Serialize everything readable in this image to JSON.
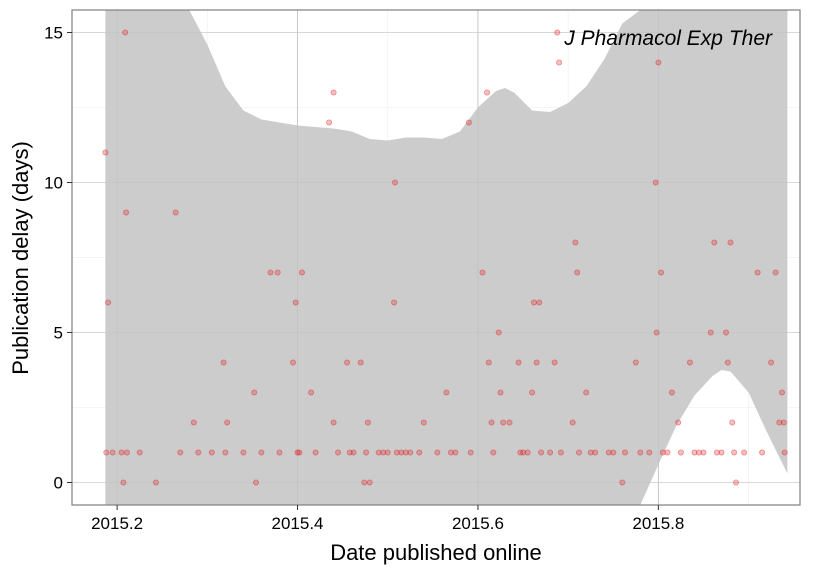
{
  "chart_data": {
    "type": "scatter",
    "title": "",
    "xlabel": "Date published online",
    "ylabel": "Publication delay (days)",
    "annotation": "J Pharmacol Exp Ther",
    "xlim": [
      2015.15,
      2015.957
    ],
    "ylim": [
      -0.75,
      15.75
    ],
    "xticks": [
      2015.2,
      2015.4,
      2015.6,
      2015.8
    ],
    "xtick_labels": [
      "2015.2",
      "2015.4",
      "2015.6",
      "2015.8"
    ],
    "yticks": [
      0,
      5,
      10,
      15
    ],
    "ytick_labels": [
      "0",
      "5",
      "10",
      "15"
    ],
    "grid": true,
    "point_color": "#e41a1c",
    "band_color": "#cccccc",
    "smooth_band": {
      "x": [
        2015.187,
        2015.2,
        2015.22,
        2015.24,
        2015.26,
        2015.28,
        2015.3,
        2015.32,
        2015.34,
        2015.36,
        2015.38,
        2015.4,
        2015.42,
        2015.44,
        2015.46,
        2015.48,
        2015.5,
        2015.52,
        2015.54,
        2015.56,
        2015.58,
        2015.6,
        2015.62,
        2015.63,
        2015.64,
        2015.66,
        2015.68,
        2015.7,
        2015.72,
        2015.74,
        2015.76,
        2015.78,
        2015.8,
        2015.82,
        2015.84,
        2015.86,
        2015.87,
        2015.88,
        2015.9,
        2015.92,
        2015.943
      ],
      "upper": [
        15.75,
        15.75,
        15.75,
        15.75,
        15.75,
        15.75,
        14.6,
        13.2,
        12.4,
        12.1,
        12.0,
        11.9,
        11.85,
        11.8,
        11.7,
        11.45,
        11.4,
        11.5,
        11.5,
        11.45,
        11.7,
        12.5,
        13.05,
        13.15,
        13.0,
        12.4,
        12.35,
        12.65,
        13.2,
        14.1,
        15.3,
        15.75,
        15.75,
        15.75,
        15.75,
        15.75,
        15.75,
        15.75,
        15.75,
        15.75,
        15.75
      ],
      "lower": [
        -0.75,
        -0.75,
        -0.75,
        -0.75,
        -0.75,
        -0.75,
        -0.75,
        -0.75,
        -0.75,
        -0.75,
        -0.75,
        -0.75,
        -0.75,
        -0.75,
        -0.75,
        -0.75,
        -0.75,
        -0.75,
        -0.75,
        -0.75,
        -0.75,
        -0.75,
        -0.75,
        -0.75,
        -0.75,
        -0.75,
        -0.75,
        -0.75,
        -0.75,
        -0.75,
        -0.75,
        -0.75,
        0.6,
        1.9,
        2.9,
        3.55,
        3.75,
        3.7,
        3.0,
        1.7,
        0.3
      ]
    },
    "points": [
      {
        "x": 2015.187,
        "y": 11
      },
      {
        "x": 2015.19,
        "y": 6
      },
      {
        "x": 2015.188,
        "y": 1
      },
      {
        "x": 2015.195,
        "y": 1
      },
      {
        "x": 2015.205,
        "y": 1
      },
      {
        "x": 2015.207,
        "y": 0
      },
      {
        "x": 2015.209,
        "y": 15
      },
      {
        "x": 2015.21,
        "y": 9
      },
      {
        "x": 2015.211,
        "y": 1
      },
      {
        "x": 2015.225,
        "y": 1
      },
      {
        "x": 2015.243,
        "y": 0
      },
      {
        "x": 2015.265,
        "y": 9
      },
      {
        "x": 2015.27,
        "y": 1
      },
      {
        "x": 2015.285,
        "y": 2
      },
      {
        "x": 2015.29,
        "y": 1
      },
      {
        "x": 2015.305,
        "y": 1
      },
      {
        "x": 2015.318,
        "y": 4
      },
      {
        "x": 2015.32,
        "y": 1
      },
      {
        "x": 2015.322,
        "y": 2
      },
      {
        "x": 2015.34,
        "y": 1
      },
      {
        "x": 2015.352,
        "y": 3
      },
      {
        "x": 2015.354,
        "y": 0
      },
      {
        "x": 2015.36,
        "y": 1
      },
      {
        "x": 2015.37,
        "y": 7
      },
      {
        "x": 2015.378,
        "y": 7
      },
      {
        "x": 2015.38,
        "y": 1
      },
      {
        "x": 2015.395,
        "y": 4
      },
      {
        "x": 2015.398,
        "y": 6
      },
      {
        "x": 2015.4,
        "y": 1
      },
      {
        "x": 2015.402,
        "y": 1
      },
      {
        "x": 2015.405,
        "y": 7
      },
      {
        "x": 2015.415,
        "y": 3
      },
      {
        "x": 2015.42,
        "y": 1
      },
      {
        "x": 2015.435,
        "y": 12
      },
      {
        "x": 2015.44,
        "y": 13
      },
      {
        "x": 2015.44,
        "y": 2
      },
      {
        "x": 2015.445,
        "y": 1
      },
      {
        "x": 2015.455,
        "y": 4
      },
      {
        "x": 2015.458,
        "y": 1
      },
      {
        "x": 2015.462,
        "y": 1
      },
      {
        "x": 2015.47,
        "y": 4
      },
      {
        "x": 2015.474,
        "y": 0
      },
      {
        "x": 2015.476,
        "y": 1
      },
      {
        "x": 2015.478,
        "y": 2
      },
      {
        "x": 2015.48,
        "y": 0
      },
      {
        "x": 2015.49,
        "y": 1
      },
      {
        "x": 2015.495,
        "y": 1
      },
      {
        "x": 2015.5,
        "y": 1
      },
      {
        "x": 2015.507,
        "y": 6
      },
      {
        "x": 2015.508,
        "y": 10
      },
      {
        "x": 2015.51,
        "y": 1
      },
      {
        "x": 2015.515,
        "y": 1
      },
      {
        "x": 2015.52,
        "y": 1
      },
      {
        "x": 2015.525,
        "y": 1
      },
      {
        "x": 2015.535,
        "y": 1
      },
      {
        "x": 2015.54,
        "y": 2
      },
      {
        "x": 2015.555,
        "y": 1
      },
      {
        "x": 2015.565,
        "y": 3
      },
      {
        "x": 2015.57,
        "y": 1
      },
      {
        "x": 2015.575,
        "y": 1
      },
      {
        "x": 2015.59,
        "y": 12
      },
      {
        "x": 2015.592,
        "y": 1
      },
      {
        "x": 2015.605,
        "y": 7
      },
      {
        "x": 2015.61,
        "y": 13
      },
      {
        "x": 2015.612,
        "y": 4
      },
      {
        "x": 2015.615,
        "y": 2
      },
      {
        "x": 2015.617,
        "y": 1
      },
      {
        "x": 2015.623,
        "y": 5
      },
      {
        "x": 2015.625,
        "y": 3
      },
      {
        "x": 2015.628,
        "y": 2
      },
      {
        "x": 2015.635,
        "y": 2
      },
      {
        "x": 2015.645,
        "y": 4
      },
      {
        "x": 2015.647,
        "y": 1
      },
      {
        "x": 2015.65,
        "y": 1
      },
      {
        "x": 2015.655,
        "y": 1
      },
      {
        "x": 2015.66,
        "y": 3
      },
      {
        "x": 2015.662,
        "y": 6
      },
      {
        "x": 2015.665,
        "y": 4
      },
      {
        "x": 2015.668,
        "y": 6
      },
      {
        "x": 2015.67,
        "y": 1
      },
      {
        "x": 2015.68,
        "y": 1
      },
      {
        "x": 2015.685,
        "y": 4
      },
      {
        "x": 2015.688,
        "y": 15
      },
      {
        "x": 2015.69,
        "y": 14
      },
      {
        "x": 2015.692,
        "y": 1
      },
      {
        "x": 2015.705,
        "y": 2
      },
      {
        "x": 2015.708,
        "y": 8
      },
      {
        "x": 2015.71,
        "y": 7
      },
      {
        "x": 2015.712,
        "y": 1
      },
      {
        "x": 2015.72,
        "y": 3
      },
      {
        "x": 2015.725,
        "y": 1
      },
      {
        "x": 2015.73,
        "y": 1
      },
      {
        "x": 2015.745,
        "y": 1
      },
      {
        "x": 2015.75,
        "y": 1
      },
      {
        "x": 2015.76,
        "y": 0
      },
      {
        "x": 2015.763,
        "y": 1
      },
      {
        "x": 2015.775,
        "y": 4
      },
      {
        "x": 2015.78,
        "y": 1
      },
      {
        "x": 2015.79,
        "y": 1
      },
      {
        "x": 2015.797,
        "y": 10
      },
      {
        "x": 2015.798,
        "y": 5
      },
      {
        "x": 2015.8,
        "y": 14
      },
      {
        "x": 2015.803,
        "y": 7
      },
      {
        "x": 2015.805,
        "y": 1
      },
      {
        "x": 2015.81,
        "y": 1
      },
      {
        "x": 2015.815,
        "y": 3
      },
      {
        "x": 2015.822,
        "y": 2
      },
      {
        "x": 2015.825,
        "y": 1
      },
      {
        "x": 2015.835,
        "y": 4
      },
      {
        "x": 2015.84,
        "y": 1
      },
      {
        "x": 2015.845,
        "y": 1
      },
      {
        "x": 2015.85,
        "y": 1
      },
      {
        "x": 2015.858,
        "y": 5
      },
      {
        "x": 2015.862,
        "y": 8
      },
      {
        "x": 2015.865,
        "y": 1
      },
      {
        "x": 2015.87,
        "y": 1
      },
      {
        "x": 2015.875,
        "y": 5
      },
      {
        "x": 2015.877,
        "y": 4
      },
      {
        "x": 2015.88,
        "y": 8
      },
      {
        "x": 2015.882,
        "y": 2
      },
      {
        "x": 2015.884,
        "y": 1
      },
      {
        "x": 2015.886,
        "y": 0
      },
      {
        "x": 2015.895,
        "y": 1
      },
      {
        "x": 2015.91,
        "y": 7
      },
      {
        "x": 2015.915,
        "y": 1
      },
      {
        "x": 2015.925,
        "y": 4
      },
      {
        "x": 2015.93,
        "y": 7
      },
      {
        "x": 2015.934,
        "y": 2
      },
      {
        "x": 2015.937,
        "y": 3
      },
      {
        "x": 2015.939,
        "y": 2
      },
      {
        "x": 2015.94,
        "y": 1
      }
    ]
  }
}
